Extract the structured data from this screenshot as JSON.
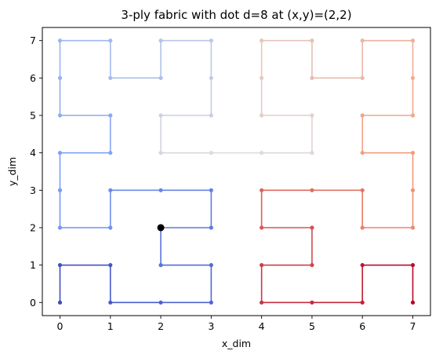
{
  "chart_data": {
    "type": "line",
    "title": "3-ply fabric with dot d=8 at (x,y)=(2,2)",
    "xlabel": "x_dim",
    "ylabel": "y_dim",
    "xlim": [
      -0.35,
      7.35
    ],
    "ylim": [
      -0.35,
      7.35
    ],
    "xticks": [
      0,
      1,
      2,
      3,
      4,
      5,
      6,
      7
    ],
    "yticks": [
      0,
      1,
      2,
      3,
      4,
      5,
      6,
      7
    ],
    "grid": false,
    "legend": "none",
    "colormap": "coolwarm",
    "path": [
      [
        0,
        0
      ],
      [
        0,
        1
      ],
      [
        1,
        1
      ],
      [
        1,
        0
      ],
      [
        2,
        0
      ],
      [
        3,
        0
      ],
      [
        3,
        1
      ],
      [
        2,
        1
      ],
      [
        2,
        2
      ],
      [
        3,
        2
      ],
      [
        3,
        3
      ],
      [
        2,
        3
      ],
      [
        1,
        3
      ],
      [
        1,
        2
      ],
      [
        0,
        2
      ],
      [
        0,
        3
      ],
      [
        0,
        4
      ],
      [
        1,
        4
      ],
      [
        1,
        5
      ],
      [
        0,
        5
      ],
      [
        0,
        6
      ],
      [
        0,
        7
      ],
      [
        1,
        7
      ],
      [
        1,
        6
      ],
      [
        2,
        6
      ],
      [
        2,
        7
      ],
      [
        3,
        7
      ],
      [
        3,
        6
      ],
      [
        3,
        5
      ],
      [
        2,
        5
      ],
      [
        2,
        4
      ],
      [
        3,
        4
      ],
      [
        4,
        4
      ],
      [
        5,
        4
      ],
      [
        5,
        5
      ],
      [
        4,
        5
      ],
      [
        4,
        6
      ],
      [
        4,
        7
      ],
      [
        5,
        7
      ],
      [
        5,
        6
      ],
      [
        6,
        6
      ],
      [
        6,
        7
      ],
      [
        7,
        7
      ],
      [
        7,
        6
      ],
      [
        7,
        5
      ],
      [
        6,
        5
      ],
      [
        6,
        4
      ],
      [
        7,
        4
      ],
      [
        7,
        3
      ],
      [
        7,
        2
      ],
      [
        6,
        2
      ],
      [
        6,
        3
      ],
      [
        5,
        3
      ],
      [
        4,
        3
      ],
      [
        4,
        2
      ],
      [
        5,
        2
      ],
      [
        5,
        1
      ],
      [
        4,
        1
      ],
      [
        4,
        0
      ],
      [
        5,
        0
      ],
      [
        6,
        0
      ],
      [
        6,
        1
      ],
      [
        7,
        1
      ],
      [
        7,
        0
      ]
    ],
    "highlight_point": {
      "x": 2,
      "y": 2,
      "color": "#000000"
    }
  }
}
